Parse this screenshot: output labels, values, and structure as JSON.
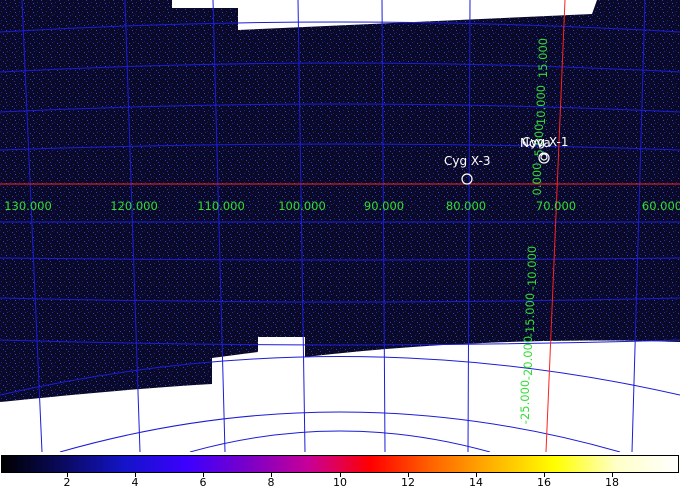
{
  "sky_map": {
    "background_color": "#ffffff",
    "field_color": "#0a0a28",
    "grid_color": "#1c1cd8",
    "axis_color": "#ff2020",
    "label_color": "#33dd33",
    "source_color": "#ffffff",
    "longitude_labels": [
      "130.000",
      "120.000",
      "110.000",
      "100.000",
      "90.000",
      "80.000",
      "70.000",
      "60.000"
    ],
    "latitude_labels": [
      "15.000",
      "10.000",
      "5.000",
      "0.000",
      "-10.000",
      "-15.000",
      "-20.000",
      "-25.000"
    ],
    "sources": [
      {
        "name": "Cyg X-3"
      },
      {
        "name": "Cyg X-1"
      },
      {
        "name": "Nova"
      }
    ]
  },
  "colorbar": {
    "colormap": "heat",
    "colors": [
      "#000000",
      "#0a0a60",
      "#1414c8",
      "#3c00ff",
      "#7a00c8",
      "#c80096",
      "#ff0000",
      "#ff6400",
      "#ffb400",
      "#ffff00",
      "#ffffc8",
      "#ffffff"
    ],
    "tick_labels": [
      "2",
      "4",
      "6",
      "8",
      "10",
      "12",
      "14",
      "16",
      "18"
    ]
  }
}
